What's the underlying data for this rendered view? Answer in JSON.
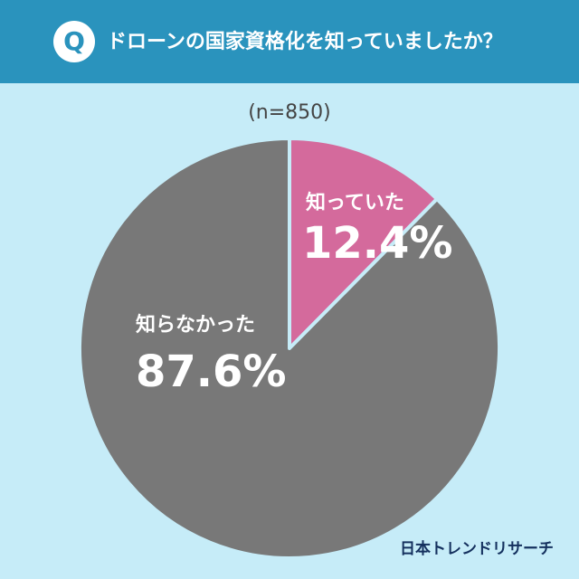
{
  "header": {
    "badge": "Q",
    "title": "ドローンの国家資格化を知っていましたか？"
  },
  "chart_data": {
    "type": "pie",
    "subtitle": "(n=850)",
    "categories": [
      "知っていた",
      "知らなかった"
    ],
    "values": [
      12.4,
      87.6
    ],
    "value_labels": [
      "12.4%",
      "87.6%"
    ],
    "colors": [
      "#d46a9c",
      "#787878"
    ]
  },
  "footer": {
    "source": "日本トレンドリサーチ"
  }
}
